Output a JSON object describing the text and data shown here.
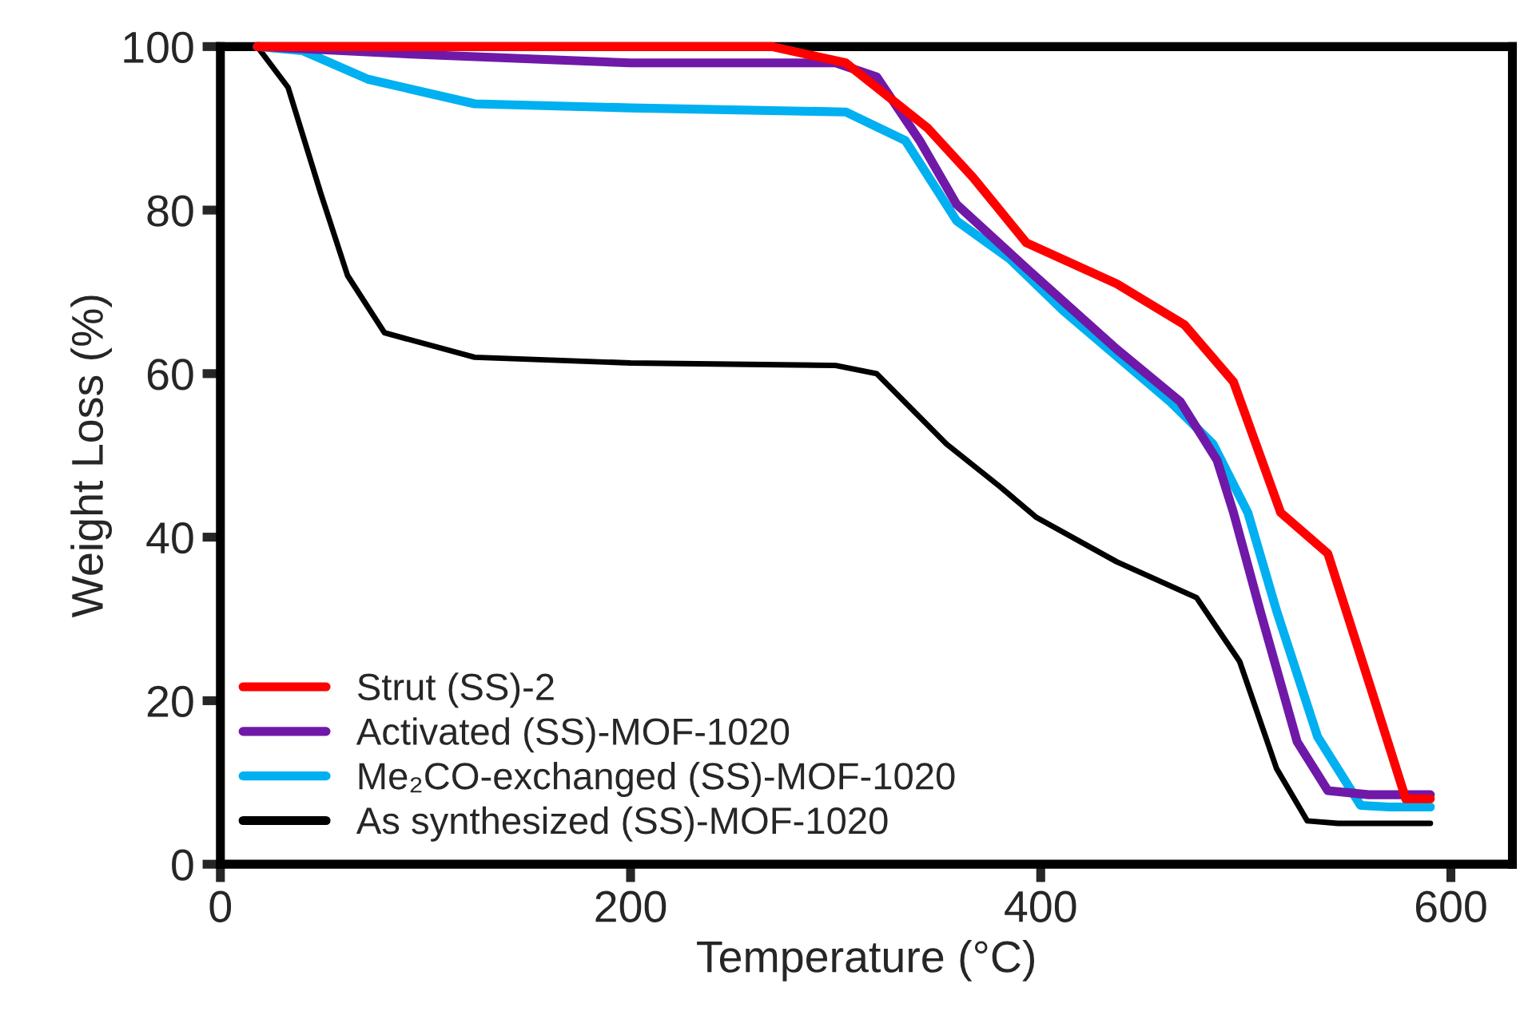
{
  "chart_data": {
    "type": "line",
    "xlabel": "Temperature (°C)",
    "ylabel": "Weight Loss (%)",
    "xlim": [
      0,
      630
    ],
    "xticks": [
      0,
      200,
      400,
      600
    ],
    "ylim": [
      0,
      100
    ],
    "yticks": [
      0,
      20,
      40,
      60,
      80,
      100
    ],
    "grid": false,
    "legend": "bottom left",
    "line_style": "solid",
    "marker": "none",
    "series": [
      {
        "name": "Strut (SS)-2",
        "color": "#ff0000",
        "x": [
          18,
          100,
          200,
          269,
          305,
          320,
          345,
          367,
          393,
          437,
          470,
          494,
          517,
          540,
          561,
          578,
          590
        ],
        "values": [
          100,
          100,
          100,
          100,
          98,
          95,
          90,
          84,
          76,
          71,
          66,
          59,
          43,
          38,
          21.5,
          8,
          8
        ]
      },
      {
        "name": "Activated (SS)-MOF-1020",
        "color": "#7019a8",
        "x": [
          18,
          100,
          200,
          300,
          320,
          341,
          359,
          393,
          437,
          468,
          486,
          494,
          507,
          525,
          540,
          560,
          590
        ],
        "values": [
          100,
          99,
          98,
          98,
          96.3,
          88.5,
          80.7,
          72.9,
          63,
          56.6,
          49.4,
          43,
          31,
          15,
          9,
          8.5,
          8.5
        ]
      },
      {
        "name": "Me₂CO-exchanged (SS)-MOF-1020",
        "color": "#00b0f0",
        "x": [
          18,
          40,
          72,
          124,
          200,
          305,
          334,
          359,
          385,
          411,
          463,
          484,
          501,
          515,
          535,
          556,
          570,
          590
        ],
        "values": [
          100,
          99.5,
          96,
          93,
          92.5,
          92,
          88.5,
          78.7,
          74,
          67.7,
          56.6,
          51.4,
          43,
          31,
          15.6,
          7.2,
          7,
          7
        ]
      },
      {
        "name": "As synthesized (SS)-MOF-1020",
        "color": "#000000",
        "x": [
          18,
          33,
          49,
          62,
          80,
          124,
          200,
          300,
          320,
          354,
          380,
          398,
          437,
          476,
          497,
          515,
          530,
          545,
          590
        ],
        "values": [
          100,
          95,
          82,
          72,
          65,
          62,
          61.3,
          61,
          60,
          51.4,
          46.2,
          42.4,
          37,
          32.6,
          24.8,
          11.7,
          5.3,
          5,
          5
        ]
      }
    ]
  }
}
